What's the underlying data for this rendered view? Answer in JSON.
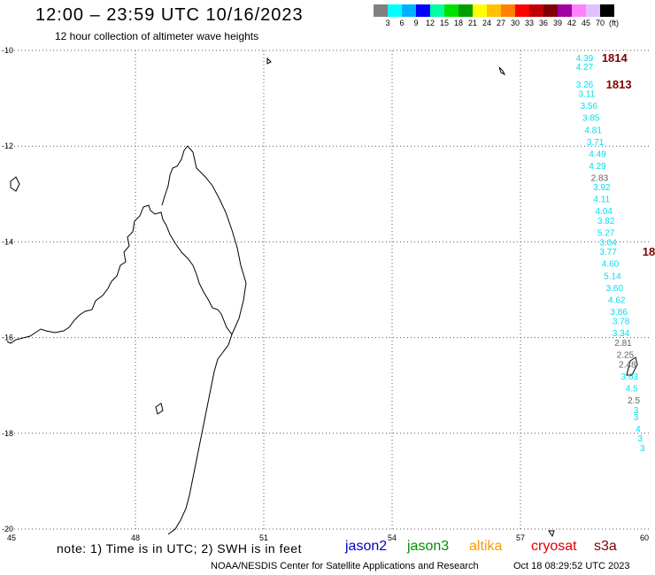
{
  "header": {
    "title": "12:00 – 23:59 UTC 10/16/2023",
    "subtitle": "12 hour collection of altimeter wave heights"
  },
  "colorbar": {
    "colors": [
      "#808080",
      "#00ffff",
      "#00b0ff",
      "#0000ff",
      "#00ffa0",
      "#00e000",
      "#00a000",
      "#ffff00",
      "#ffc000",
      "#ff8000",
      "#ff0000",
      "#c00000",
      "#800000",
      "#a000a0",
      "#ff80ff",
      "#e0c0ff",
      "#000000"
    ],
    "labels": [
      "3",
      "6",
      "9",
      "12",
      "15",
      "18",
      "21",
      "24",
      "27",
      "30",
      "33",
      "36",
      "39",
      "42",
      "45",
      "70"
    ],
    "unit": "(ft)"
  },
  "axes": {
    "lon_min": 45,
    "lon_max": 60,
    "lat_min": -20,
    "lat_max": -10,
    "lon_ticks": [
      "45",
      "48",
      "51",
      "54",
      "57",
      "60"
    ],
    "lat_ticks": [
      "-10",
      "-12",
      "-14",
      "-16",
      "-18",
      "-20"
    ]
  },
  "track": {
    "color": "#00e0f0",
    "points": [
      {
        "lon": 58.5,
        "lat": -10.15,
        "label": "4.39"
      },
      {
        "lon": 58.5,
        "lat": -10.33,
        "label": "4.27"
      },
      {
        "lon": 58.5,
        "lat": -10.7,
        "label": "3.26"
      },
      {
        "lon": 58.55,
        "lat": -10.9,
        "label": "3.11"
      },
      {
        "lon": 58.6,
        "lat": -11.15,
        "label": "3.56"
      },
      {
        "lon": 58.65,
        "lat": -11.4,
        "label": "3.85"
      },
      {
        "lon": 58.7,
        "lat": -11.65,
        "label": "4.81"
      },
      {
        "lon": 58.75,
        "lat": -11.9,
        "label": "3.71"
      },
      {
        "lon": 58.8,
        "lat": -12.15,
        "label": "4.49"
      },
      {
        "lon": 58.8,
        "lat": -12.4,
        "label": "4.29"
      },
      {
        "lon": 58.85,
        "lat": -12.65,
        "label": "2.83",
        "color": "#606060"
      },
      {
        "lon": 58.9,
        "lat": -12.85,
        "label": "3.92"
      },
      {
        "lon": 58.9,
        "lat": -13.1,
        "label": "4.11"
      },
      {
        "lon": 58.95,
        "lat": -13.35,
        "label": "4.04"
      },
      {
        "lon": 59.0,
        "lat": -13.55,
        "label": "3.82"
      },
      {
        "lon": 59.0,
        "lat": -13.8,
        "label": "5.27"
      },
      {
        "lon": 59.05,
        "lat": -14.0,
        "label": "3.04"
      },
      {
        "lon": 59.05,
        "lat": -14.2,
        "label": "3.77"
      },
      {
        "lon": 59.1,
        "lat": -14.45,
        "label": "4.60"
      },
      {
        "lon": 59.15,
        "lat": -14.7,
        "label": "5.14"
      },
      {
        "lon": 59.2,
        "lat": -14.95,
        "label": "3.60"
      },
      {
        "lon": 59.25,
        "lat": -15.2,
        "label": "4.62"
      },
      {
        "lon": 59.3,
        "lat": -15.45,
        "label": "3.86"
      },
      {
        "lon": 59.35,
        "lat": -15.65,
        "label": "3.78"
      },
      {
        "lon": 59.35,
        "lat": -15.9,
        "label": "3.34"
      },
      {
        "lon": 59.4,
        "lat": -16.1,
        "label": "2.81",
        "color": "#606060"
      },
      {
        "lon": 59.45,
        "lat": -16.35,
        "label": "2.25",
        "color": "#606060"
      },
      {
        "lon": 59.5,
        "lat": -16.55,
        "label": "2.48",
        "color": "#606060"
      },
      {
        "lon": 59.55,
        "lat": -16.8,
        "label": "3.63"
      },
      {
        "lon": 59.6,
        "lat": -17.05,
        "label": "4.5"
      },
      {
        "lon": 59.65,
        "lat": -17.3,
        "label": "2.5",
        "color": "#606060"
      },
      {
        "lon": 59.7,
        "lat": -17.5,
        "label": "3"
      },
      {
        "lon": 59.7,
        "lat": -17.65,
        "label": "3"
      },
      {
        "lon": 59.75,
        "lat": -17.9,
        "label": "4"
      },
      {
        "lon": 59.8,
        "lat": -18.1,
        "label": "3"
      },
      {
        "lon": 59.85,
        "lat": -18.3,
        "label": "3"
      }
    ]
  },
  "time_labels": [
    {
      "lon": 58.9,
      "lat": -10.15,
      "text": "1814"
    },
    {
      "lon": 59.0,
      "lat": -10.7,
      "text": "1813"
    },
    {
      "lon": 59.85,
      "lat": -14.2,
      "text": "18"
    }
  ],
  "note": "note:  1) Time is in UTC;  2) SWH is in feet",
  "satellites": [
    {
      "name": "jason2",
      "color": "#0000c0"
    },
    {
      "name": "jason3",
      "color": "#009000"
    },
    {
      "name": "altika",
      "color": "#ff9900"
    },
    {
      "name": "cryosat",
      "color": "#e00000"
    },
    {
      "name": "s3a",
      "color": "#800000"
    }
  ],
  "footer": {
    "agency": "NOAA/NESDIS Center for Satellite Applications and Research",
    "generated": "Oct 18 08:29:52 UTC 2023"
  }
}
